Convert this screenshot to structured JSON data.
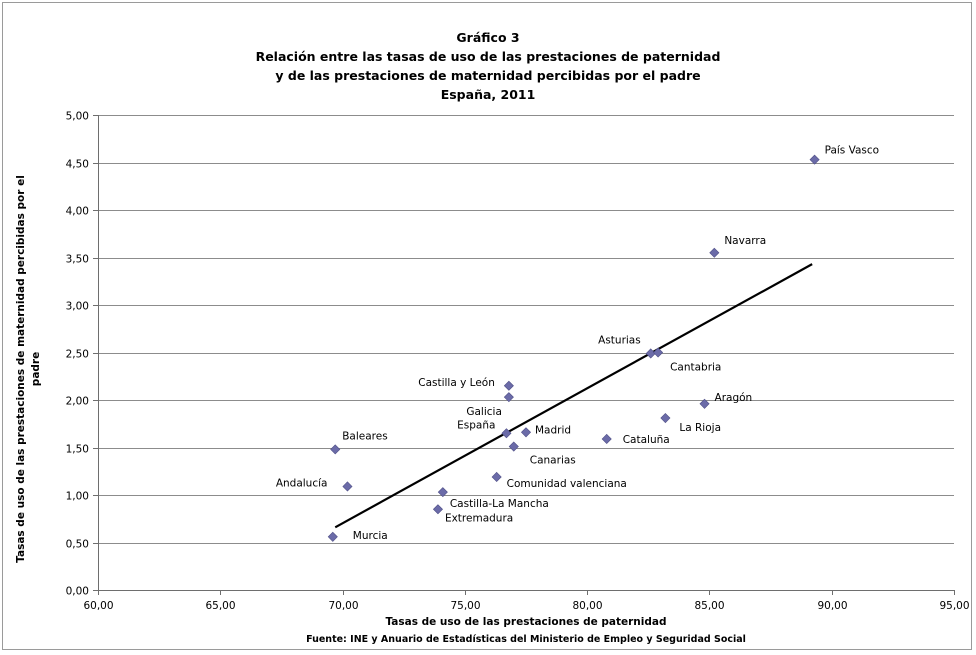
{
  "chart_data": {
    "type": "scatter",
    "title_lines": [
      "Gráfico 3",
      "Relación entre las tasas de uso de las prestaciones de paternidad",
      "y de las prestaciones de maternidad percibidas por el padre",
      "España, 2011"
    ],
    "xlabel": "Tasas de uso de las prestaciones de paternidad",
    "ylabel_lines": [
      "Tasas de uso de las prestaciones de maternidad percibidas por el",
      "padre"
    ],
    "source": "Fuente: INE y Anuario de Estadísticas del Ministerio de Empleo y Seguridad Social",
    "xlim": [
      60,
      95
    ],
    "ylim": [
      0,
      5
    ],
    "x_ticks": [
      "60,00",
      "65,00",
      "70,00",
      "75,00",
      "80,00",
      "85,00",
      "90,00",
      "95,00"
    ],
    "y_ticks": [
      "0,00",
      "0,50",
      "1,00",
      "1,50",
      "2,00",
      "2,50",
      "3,00",
      "3,50",
      "4,00",
      "4,50",
      "5,00"
    ],
    "grid": true,
    "marker_color": "#6b6ba8",
    "trendline": {
      "x": [
        69.7,
        89.2
      ],
      "y": [
        0.66,
        3.43
      ],
      "color": "#000000"
    },
    "points": [
      {
        "label": "País Vasco",
        "x": 89.3,
        "y": 4.53,
        "anchor": "start",
        "dx": 10,
        "dy": -10
      },
      {
        "label": "Navarra",
        "x": 85.2,
        "y": 3.55,
        "anchor": "start",
        "dx": 10,
        "dy": -13
      },
      {
        "label": "Asturias",
        "x": 82.6,
        "y": 2.49,
        "anchor": "end",
        "dx": -10,
        "dy": -14
      },
      {
        "label": "Cantabria",
        "x": 82.9,
        "y": 2.5,
        "anchor": "start",
        "dx": 12,
        "dy": 14
      },
      {
        "label": "Aragón",
        "x": 84.8,
        "y": 1.96,
        "anchor": "start",
        "dx": 10,
        "dy": -7
      },
      {
        "label": "La Rioja",
        "x": 83.2,
        "y": 1.81,
        "anchor": "start",
        "dx": 14,
        "dy": 9
      },
      {
        "label": "Cataluña",
        "x": 80.8,
        "y": 1.59,
        "anchor": "start",
        "dx": 16,
        "dy": 0
      },
      {
        "label": "Castilla y León",
        "x": 76.8,
        "y": 2.15,
        "anchor": "end",
        "dx": -14,
        "dy": -4
      },
      {
        "label": "Galicia",
        "x": 76.8,
        "y": 2.03,
        "anchor": "end",
        "dx": -7,
        "dy": 14
      },
      {
        "label": "España",
        "x": 76.7,
        "y": 1.65,
        "anchor": "end",
        "dx": -11,
        "dy": -9
      },
      {
        "label": "Madrid",
        "x": 77.5,
        "y": 1.66,
        "anchor": "start",
        "dx": 9,
        "dy": -3
      },
      {
        "label": "Canarias",
        "x": 77.0,
        "y": 1.51,
        "anchor": "start",
        "dx": 16,
        "dy": 13
      },
      {
        "label": "Baleares",
        "x": 69.7,
        "y": 1.48,
        "anchor": "start",
        "dx": 7,
        "dy": -14
      },
      {
        "label": "Comunidad valenciana",
        "x": 76.3,
        "y": 1.19,
        "anchor": "start",
        "dx": 10,
        "dy": 6
      },
      {
        "label": "Andalucía",
        "x": 70.2,
        "y": 1.09,
        "anchor": "end",
        "dx": -20,
        "dy": -4
      },
      {
        "label": "Castilla-La Mancha",
        "x": 74.1,
        "y": 1.03,
        "anchor": "start",
        "dx": 7,
        "dy": 11
      },
      {
        "label": "Extremadura",
        "x": 73.9,
        "y": 0.85,
        "anchor": "start",
        "dx": 7,
        "dy": 8
      },
      {
        "label": "Murcia",
        "x": 69.6,
        "y": 0.56,
        "anchor": "start",
        "dx": 20,
        "dy": -2
      }
    ]
  }
}
